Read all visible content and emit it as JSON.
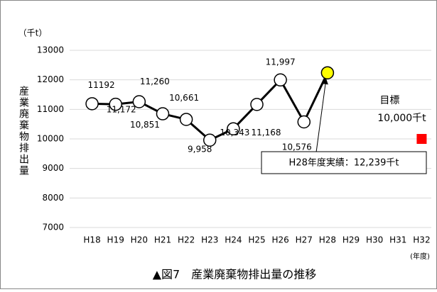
{
  "chart_data": {
    "type": "line",
    "title": "▲図7　産業廃棄物排出量の推移",
    "y_unit": "（千t）",
    "y_label": "産業廃棄物排出量",
    "x_unit": "(年度)",
    "categories": [
      "H18",
      "H19",
      "H20",
      "H21",
      "H22",
      "H23",
      "H24",
      "H25",
      "H26",
      "H27",
      "H28",
      "H29",
      "H30",
      "H31",
      "H32"
    ],
    "series": [
      {
        "color": "#000000",
        "marker": "circle",
        "marker_colors": [
          "#ffffff",
          "#ffffff",
          "#ffffff",
          "#ffffff",
          "#ffffff",
          "#ffffff",
          "#ffffff",
          "#ffffff",
          "#ffffff",
          "#ffffff",
          "#ffff00",
          null,
          null,
          null,
          null
        ],
        "values": [
          11192,
          11172,
          11260,
          10851,
          10661,
          9958,
          10343,
          11168,
          11997,
          10576,
          12239,
          null,
          null,
          null,
          null
        ],
        "value_labels": [
          "11192",
          "11,172",
          "11,260",
          "10,851",
          "10,661",
          "9,958",
          "10,343",
          "11,168",
          "11,997",
          "10,576",
          null,
          null,
          null,
          null,
          null
        ]
      },
      {
        "color": "#ff0000",
        "marker": "square",
        "values": [
          null,
          null,
          null,
          null,
          null,
          null,
          null,
          null,
          null,
          null,
          null,
          null,
          null,
          null,
          10000
        ],
        "value_labels": [
          null,
          null,
          null,
          null,
          null,
          null,
          null,
          null,
          null,
          null,
          null,
          null,
          null,
          null,
          "10,000千t"
        ]
      }
    ],
    "target_label": "目標",
    "annotation": "H28年度実績：12,239千t",
    "ylim": [
      7000,
      13000
    ],
    "yticks": [
      7000,
      8000,
      9000,
      10000,
      11000,
      12000,
      13000
    ],
    "grid": true
  }
}
